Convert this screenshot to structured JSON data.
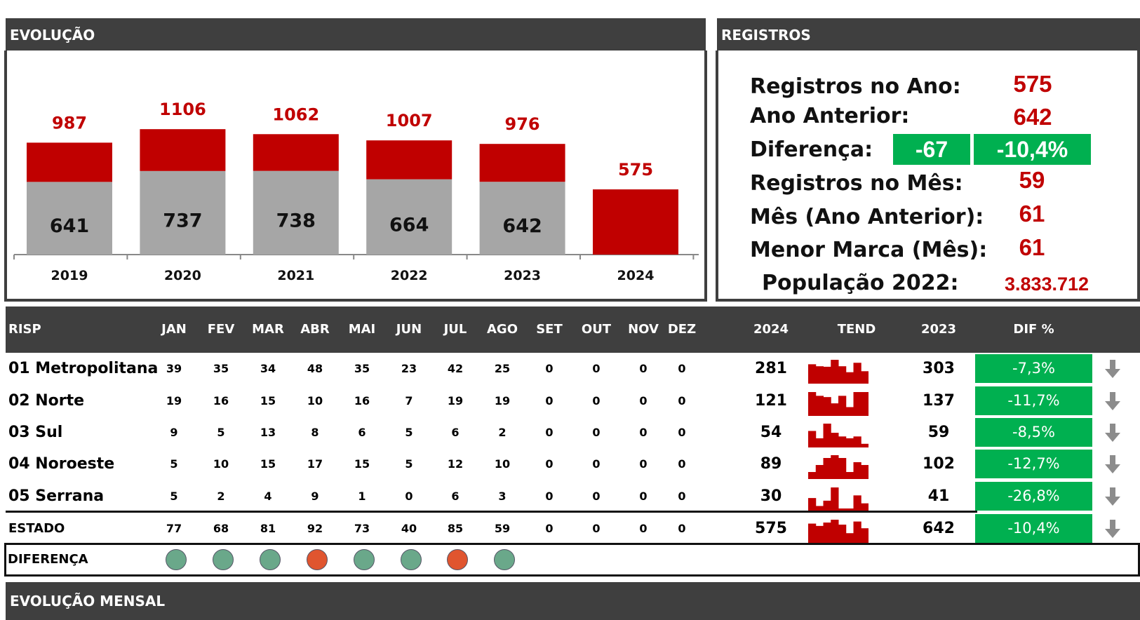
{
  "evolucao": {
    "title": "EVOLUÇÃO",
    "chart_data": {
      "type": "bar",
      "categories": [
        "2019",
        "2020",
        "2021",
        "2022",
        "2023",
        "2024"
      ],
      "series": [
        {
          "values": [
            641,
            737,
            738,
            664,
            642,
            0
          ],
          "color": "#a6a6a6"
        },
        {
          "values": [
            346,
            369,
            324,
            343,
            334,
            575
          ],
          "color": "#c00000"
        }
      ],
      "totals": [
        987,
        1106,
        1062,
        1007,
        976,
        575
      ],
      "inner_labels": [
        "641",
        "737",
        "738",
        "664",
        "642",
        ""
      ],
      "ylim": [
        0,
        1200
      ]
    }
  },
  "registros": {
    "title": "REGISTROS",
    "ano_label": "Registros no Ano:",
    "ano_value": "575",
    "anterior_label": "Ano Anterior:",
    "anterior_value": "642",
    "diferenca_label": "Diferença:",
    "diferenca_abs": "-67",
    "diferenca_pct": "-10,4%",
    "mes_label": "Registros no Mês:",
    "mes_value": "59",
    "mes_anterior_label": "Mês (Ano Anterior):",
    "mes_anterior_value": "61",
    "menor_label": "Menor Marca (Mês):",
    "menor_value": "61",
    "populacao_label": "População 2022:",
    "populacao_value": "3.833.712"
  },
  "table": {
    "headers": {
      "risp": "RISP",
      "months": [
        "JAN",
        "FEV",
        "MAR",
        "ABR",
        "MAI",
        "JUN",
        "JUL",
        "AGO",
        "SET",
        "OUT",
        "NOV",
        "DEZ"
      ],
      "y2024": "2024",
      "tend": "TEND",
      "y2023": "2023",
      "dif": "DIF %"
    },
    "rows": [
      {
        "name": "01 Metropolitana",
        "months": [
          "39",
          "35",
          "34",
          "48",
          "35",
          "23",
          "42",
          "25",
          "0",
          "0",
          "0",
          "0"
        ],
        "y2024": "281",
        "y2023": "303",
        "dif": "-7,3%"
      },
      {
        "name": "02 Norte",
        "months": [
          "19",
          "16",
          "15",
          "10",
          "16",
          "7",
          "19",
          "19",
          "0",
          "0",
          "0",
          "0"
        ],
        "y2024": "121",
        "y2023": "137",
        "dif": "-11,7%"
      },
      {
        "name": "03 Sul",
        "months": [
          "9",
          "5",
          "13",
          "8",
          "6",
          "5",
          "6",
          "2",
          "0",
          "0",
          "0",
          "0"
        ],
        "y2024": "54",
        "y2023": "59",
        "dif": "-8,5%"
      },
      {
        "name": "04 Noroeste",
        "months": [
          "5",
          "10",
          "15",
          "17",
          "15",
          "5",
          "12",
          "10",
          "0",
          "0",
          "0",
          "0"
        ],
        "y2024": "89",
        "y2023": "102",
        "dif": "-12,7%"
      },
      {
        "name": "05 Serrana",
        "months": [
          "5",
          "2",
          "4",
          "9",
          "1",
          "0",
          "6",
          "3",
          "0",
          "0",
          "0",
          "0"
        ],
        "y2024": "30",
        "y2023": "41",
        "dif": "-26,8%"
      }
    ],
    "estado": {
      "name": "ESTADO",
      "months": [
        "77",
        "68",
        "81",
        "92",
        "73",
        "40",
        "85",
        "59",
        "0",
        "0",
        "0",
        "0"
      ],
      "y2024": "575",
      "y2023": "642",
      "dif": "-10,4%"
    },
    "diferenca": {
      "name": "DIFERENÇA",
      "dots": [
        "green",
        "green",
        "green",
        "red",
        "green",
        "green",
        "red",
        "green"
      ]
    },
    "colors": {
      "green": "#6aa88a",
      "red": "#e0552f",
      "dif_bg": "#00b050",
      "spark": "#c00000"
    }
  },
  "mensal": {
    "title": "EVOLUÇÃO MENSAL"
  }
}
